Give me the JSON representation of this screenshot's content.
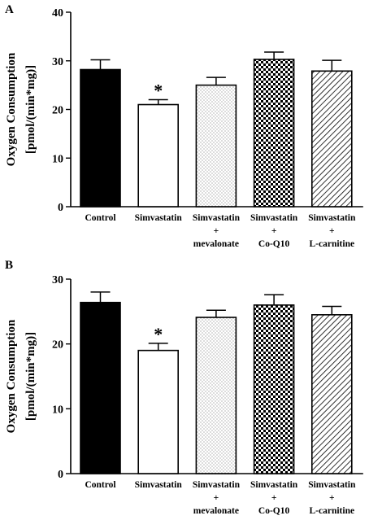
{
  "chart_data": [
    {
      "type": "bar",
      "panel_label": "A",
      "ylabel_line1": "Oxygen Consumption",
      "ylabel_line2": "[pmol/(min*mg)]",
      "ylim": [
        0,
        40
      ],
      "yticks": [
        "0",
        "10",
        "20",
        "30",
        "40"
      ],
      "categories": [
        [
          "Control"
        ],
        [
          "Simvastatin"
        ],
        [
          "Simvastatin",
          "+",
          "mevalonate"
        ],
        [
          "Simvastatin",
          "+",
          "Co-Q10"
        ],
        [
          "Simvastatin",
          "+",
          "L-carnitine"
        ]
      ],
      "values": [
        28.2,
        21.0,
        25.0,
        30.3,
        27.9
      ],
      "errors": [
        2.0,
        1.0,
        1.6,
        1.5,
        2.2
      ],
      "patterns": [
        "solid",
        "white",
        "dots",
        "checker",
        "hatch"
      ],
      "annotations": [
        {
          "category_index": 1,
          "text": "*"
        }
      ]
    },
    {
      "type": "bar",
      "panel_label": "B",
      "ylabel_line1": "Oxygen Consumption",
      "ylabel_line2": "[pmol/(min*mg)]",
      "ylim": [
        0,
        30
      ],
      "yticks": [
        "0",
        "10",
        "20",
        "30"
      ],
      "categories": [
        [
          "Control"
        ],
        [
          "Simvastatin"
        ],
        [
          "Simvastatin",
          "+",
          "mevalonate"
        ],
        [
          "Simvastatin",
          "+",
          "Co-Q10"
        ],
        [
          "Simvastatin",
          "+",
          "L-carnitine"
        ]
      ],
      "values": [
        26.4,
        19.0,
        24.1,
        26.0,
        24.5
      ],
      "errors": [
        1.6,
        1.1,
        1.1,
        1.6,
        1.3
      ],
      "patterns": [
        "solid",
        "white",
        "dots",
        "checker",
        "hatch"
      ],
      "annotations": [
        {
          "category_index": 1,
          "text": "*"
        }
      ]
    }
  ]
}
